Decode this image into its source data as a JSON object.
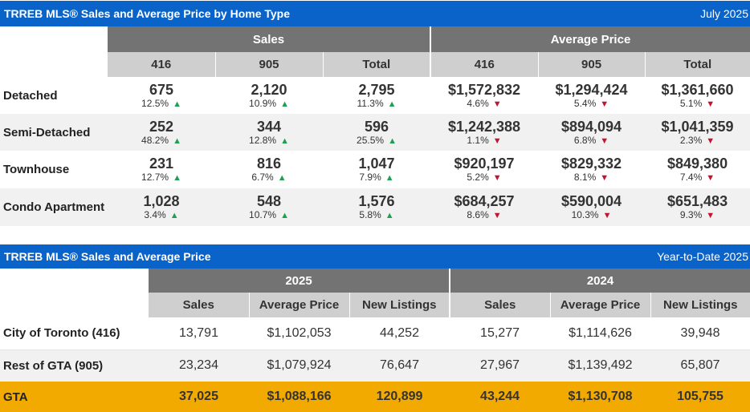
{
  "section1": {
    "title": "TRREB MLS® Sales and Average Price by Home Type",
    "period": "July 2025",
    "groups": [
      "Sales",
      "Average Price"
    ],
    "subheaders": [
      "416",
      "905",
      "Total",
      "416",
      "905",
      "Total"
    ],
    "rows": [
      {
        "label": "Detached",
        "cells": [
          {
            "value": "675",
            "change": "12.5%",
            "dir": "up"
          },
          {
            "value": "2,120",
            "change": "10.9%",
            "dir": "up"
          },
          {
            "value": "2,795",
            "change": "11.3%",
            "dir": "up"
          },
          {
            "value": "$1,572,832",
            "change": "4.6%",
            "dir": "down"
          },
          {
            "value": "$1,294,424",
            "change": "5.4%",
            "dir": "down"
          },
          {
            "value": "$1,361,660",
            "change": "5.1%",
            "dir": "down"
          }
        ]
      },
      {
        "label": "Semi-Detached",
        "cells": [
          {
            "value": "252",
            "change": "48.2%",
            "dir": "up"
          },
          {
            "value": "344",
            "change": "12.8%",
            "dir": "up"
          },
          {
            "value": "596",
            "change": "25.5%",
            "dir": "up"
          },
          {
            "value": "$1,242,388",
            "change": "1.1%",
            "dir": "down"
          },
          {
            "value": "$894,094",
            "change": "6.8%",
            "dir": "down"
          },
          {
            "value": "$1,041,359",
            "change": "2.3%",
            "dir": "down"
          }
        ]
      },
      {
        "label": "Townhouse",
        "cells": [
          {
            "value": "231",
            "change": "12.7%",
            "dir": "up"
          },
          {
            "value": "816",
            "change": "6.7%",
            "dir": "up"
          },
          {
            "value": "1,047",
            "change": "7.9%",
            "dir": "up"
          },
          {
            "value": "$920,197",
            "change": "5.2%",
            "dir": "down"
          },
          {
            "value": "$829,332",
            "change": "8.1%",
            "dir": "down"
          },
          {
            "value": "$849,380",
            "change": "7.4%",
            "dir": "down"
          }
        ]
      },
      {
        "label": "Condo Apartment",
        "cells": [
          {
            "value": "1,028",
            "change": "3.4%",
            "dir": "up"
          },
          {
            "value": "548",
            "change": "10.7%",
            "dir": "up"
          },
          {
            "value": "1,576",
            "change": "5.8%",
            "dir": "up"
          },
          {
            "value": "$684,257",
            "change": "8.6%",
            "dir": "down"
          },
          {
            "value": "$590,004",
            "change": "10.3%",
            "dir": "down"
          },
          {
            "value": "$651,483",
            "change": "9.3%",
            "dir": "down"
          }
        ]
      }
    ]
  },
  "section2": {
    "title": "TRREB MLS® Sales and Average Price",
    "period": "Year-to-Date 2025",
    "groups": [
      "2025",
      "2024"
    ],
    "subheaders": [
      "Sales",
      "Average Price",
      "New Listings",
      "Sales",
      "Average Price",
      "New Listings"
    ],
    "rows": [
      {
        "label": "City of Toronto (416)",
        "cells": [
          "13,791",
          "$1,102,053",
          "44,252",
          "15,277",
          "$1,114,626",
          "39,948"
        ]
      },
      {
        "label": "Rest of GTA (905)",
        "cells": [
          "23,234",
          "$1,079,924",
          "76,647",
          "27,967",
          "$1,139,492",
          "65,807"
        ]
      },
      {
        "label": "GTA",
        "cells": [
          "37,025",
          "$1,088,166",
          "120,899",
          "43,244",
          "$1,130,708",
          "105,755"
        ]
      }
    ]
  },
  "colors": {
    "banner": "#0a63c9",
    "group_header": "#737373",
    "sub_header": "#cfcfcf",
    "up_arrow": "#1ea052",
    "down_arrow": "#c4122f",
    "gta_row": "#f2a900"
  },
  "icons": {
    "up": "triangle-up-icon",
    "down": "triangle-down-icon"
  }
}
